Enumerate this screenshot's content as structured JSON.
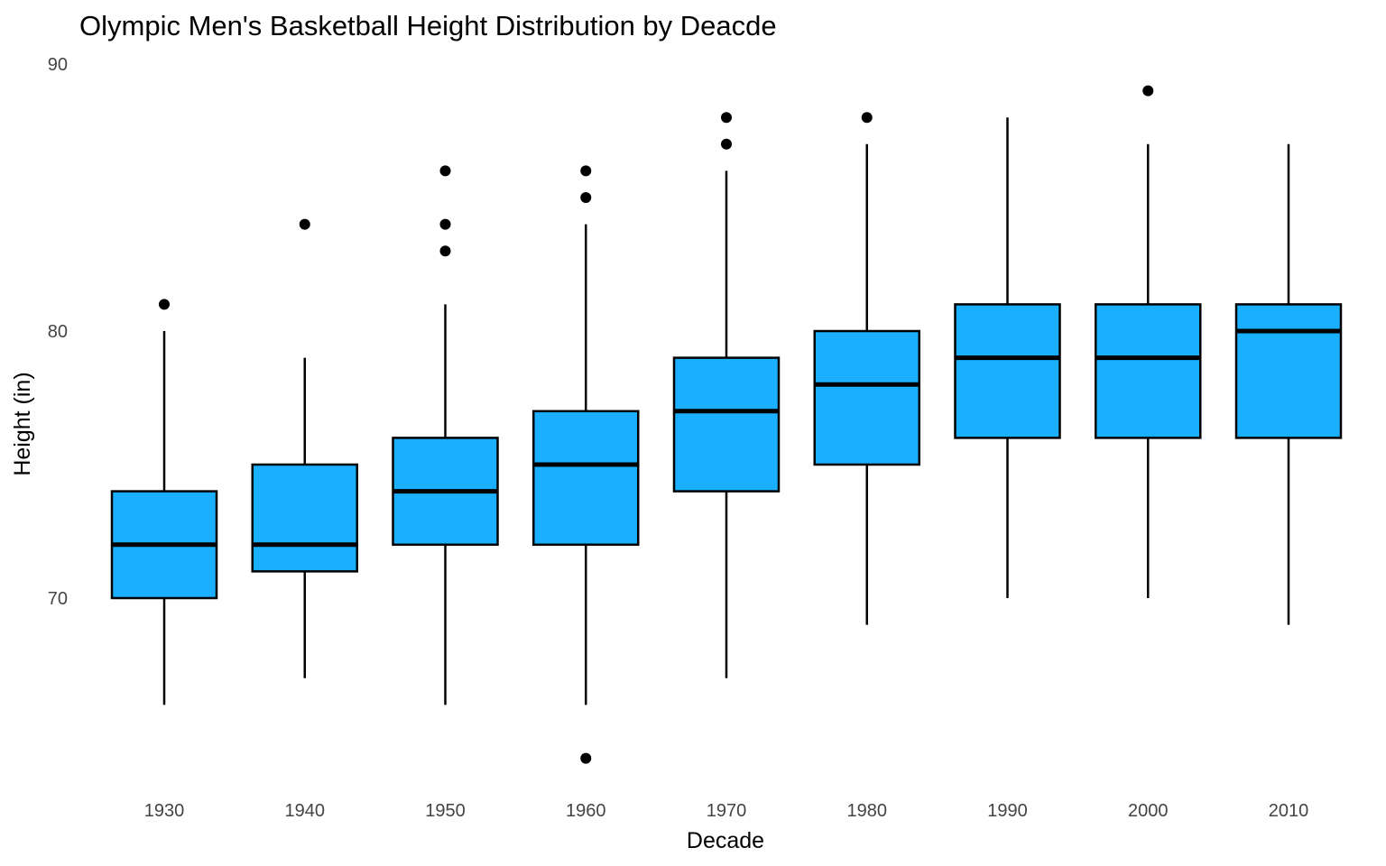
{
  "chart_data": {
    "type": "boxplot",
    "title": "Olympic Men's Basketball Height Distribution by Deacde",
    "xlabel": "Decade",
    "ylabel": "Height (in)",
    "ylim": [
      62.6,
      91.2
    ],
    "yticks": [
      70,
      80,
      90
    ],
    "grid": false,
    "legend": "none",
    "box_fill": "#1AB0FF",
    "box_stroke": "#000000",
    "categories": [
      "1930",
      "1940",
      "1950",
      "1960",
      "1970",
      "1980",
      "1990",
      "2000",
      "2010"
    ],
    "boxes": [
      {
        "category": "1930",
        "whisker_low": 66,
        "q1": 70,
        "median": 72,
        "q3": 74,
        "whisker_high": 80,
        "outliers": [
          81
        ]
      },
      {
        "category": "1940",
        "whisker_low": 67,
        "q1": 71,
        "median": 72,
        "q3": 75,
        "whisker_high": 79,
        "outliers": [
          84
        ]
      },
      {
        "category": "1950",
        "whisker_low": 66,
        "q1": 72,
        "median": 74,
        "q3": 76,
        "whisker_high": 81,
        "outliers": [
          83,
          84,
          86
        ]
      },
      {
        "category": "1960",
        "whisker_low": 66,
        "q1": 72,
        "median": 75,
        "q3": 77,
        "whisker_high": 84,
        "outliers": [
          64,
          85,
          86
        ]
      },
      {
        "category": "1970",
        "whisker_low": 67,
        "q1": 74,
        "median": 77,
        "q3": 79,
        "whisker_high": 86,
        "outliers": [
          87,
          88
        ]
      },
      {
        "category": "1980",
        "whisker_low": 69,
        "q1": 75,
        "median": 78,
        "q3": 80,
        "whisker_high": 87,
        "outliers": [
          88
        ]
      },
      {
        "category": "1990",
        "whisker_low": 70,
        "q1": 76,
        "median": 79,
        "q3": 81,
        "whisker_high": 88,
        "outliers": []
      },
      {
        "category": "2000",
        "whisker_low": 70,
        "q1": 76,
        "median": 79,
        "q3": 81,
        "whisker_high": 87,
        "outliers": [
          89
        ]
      },
      {
        "category": "2010",
        "whisker_low": 69,
        "q1": 76,
        "median": 80,
        "q3": 81,
        "whisker_high": 87,
        "outliers": []
      }
    ]
  }
}
